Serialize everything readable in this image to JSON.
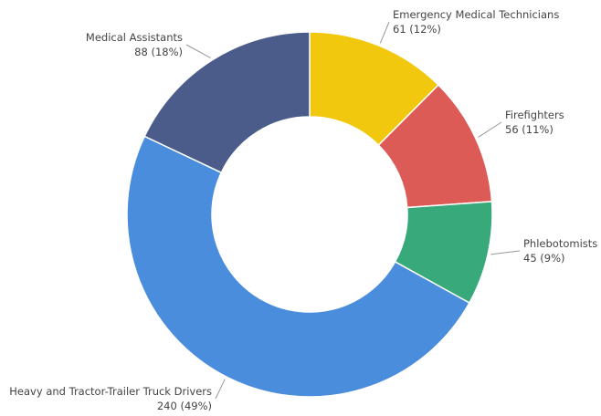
{
  "chart_data": {
    "type": "donut",
    "categories": [
      "Emergency Medical Technicians",
      "Firefighters",
      "Phlebotomists",
      "Heavy and Tractor-Trailer Truck Drivers",
      "Medical Assistants"
    ],
    "values": [
      61,
      56,
      45,
      240,
      88
    ],
    "value_labels": [
      "61 (12%)",
      "56 (11%)",
      "45 (9%)",
      "240 (49%)",
      "88 (18%)"
    ],
    "colors": [
      "#f2c80f",
      "#dd5b57",
      "#37a97a",
      "#4a8ddc",
      "#4b5b8a"
    ]
  }
}
